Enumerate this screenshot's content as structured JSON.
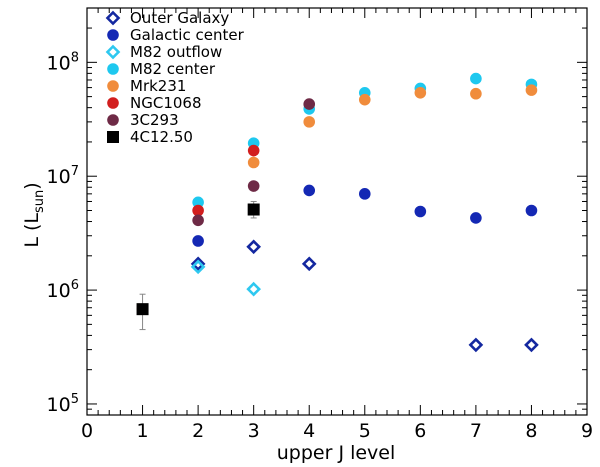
{
  "chart_data": {
    "type": "scatter",
    "xlabel": "upper J level",
    "ylabel": {
      "prefix": "L (L",
      "subscript": "sun",
      "suffix": ")"
    },
    "xlim": [
      0,
      9
    ],
    "ylim": [
      80000,
      300000000
    ],
    "yscale": "log",
    "legend_position": "top-left",
    "x_ticks": [
      0,
      1,
      2,
      3,
      4,
      5,
      6,
      7,
      8,
      9
    ],
    "y_ticks": [
      {
        "value": 100000,
        "base": "10",
        "exp": "5"
      },
      {
        "value": 1000000,
        "base": "10",
        "exp": "6"
      },
      {
        "value": 10000000,
        "base": "10",
        "exp": "7"
      },
      {
        "value": 100000000,
        "base": "10",
        "exp": "8"
      }
    ],
    "series": [
      {
        "name": "Outer Galaxy",
        "marker": "diamond-open",
        "color": "#1428a0",
        "points": [
          [
            2,
            1700000
          ],
          [
            3,
            2400000
          ],
          [
            4,
            1700000
          ],
          [
            7,
            330000
          ],
          [
            8,
            330000
          ]
        ]
      },
      {
        "name": "Galactic center",
        "marker": "circle",
        "color": "#1428b4",
        "points": [
          [
            2,
            2700000
          ],
          [
            4,
            7500000
          ],
          [
            5,
            7000000
          ],
          [
            6,
            4900000
          ],
          [
            7,
            4300000
          ],
          [
            8,
            5000000
          ]
        ]
      },
      {
        "name": "M82 outflow",
        "marker": "diamond-open",
        "color": "#2ec8f0",
        "points": [
          [
            2,
            1600000
          ],
          [
            3,
            1020000
          ]
        ]
      },
      {
        "name": "M82 center",
        "marker": "circle",
        "color": "#1ec8ef",
        "points": [
          [
            2,
            5900000
          ],
          [
            3,
            19500000
          ],
          [
            4,
            39000000
          ],
          [
            5,
            54000000
          ],
          [
            6,
            59000000
          ],
          [
            7,
            72000000
          ],
          [
            8,
            64000000
          ]
        ]
      },
      {
        "name": "Mrk231",
        "marker": "circle",
        "color": "#f08c3c",
        "points": [
          [
            3,
            13200000
          ],
          [
            4,
            30000000
          ],
          [
            5,
            47000000
          ],
          [
            6,
            54000000
          ],
          [
            7,
            53000000
          ],
          [
            8,
            57000000
          ]
        ]
      },
      {
        "name": "NGC1068",
        "marker": "circle",
        "color": "#d21e1e",
        "points": [
          [
            1,
            680000
          ],
          [
            2,
            5000000
          ],
          [
            3,
            16800000
          ]
        ]
      },
      {
        "name": "3C293",
        "marker": "circle",
        "color": "#6e2a46",
        "points": [
          [
            2,
            4100000
          ],
          [
            3,
            8200000
          ],
          [
            4,
            43000000
          ]
        ]
      },
      {
        "name": "4C12.50",
        "marker": "square",
        "color": "#000000",
        "points": [
          [
            1,
            680000,
            450000,
            920000
          ],
          [
            3,
            5100000,
            4300000,
            6000000
          ]
        ]
      }
    ]
  }
}
